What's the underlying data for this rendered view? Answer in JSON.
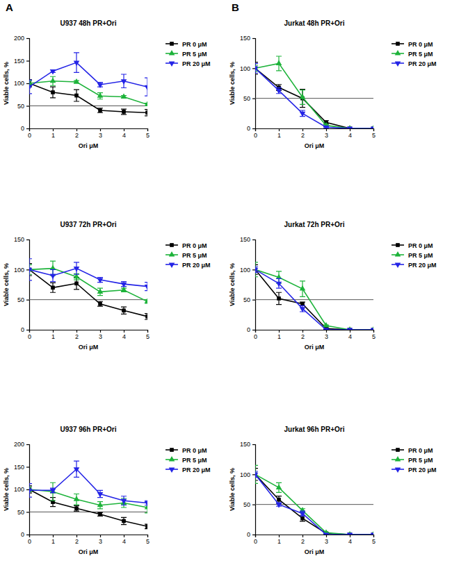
{
  "chart_data": [
    {
      "type": "line",
      "title": "U937 48h PR+Ori",
      "annotations": [
        "A"
      ],
      "x_label": "Ori μM",
      "y_label": "Viable cells, %",
      "x": [
        0,
        1,
        2,
        3,
        4,
        5
      ],
      "xlim": [
        0,
        5
      ],
      "xticks": [
        0,
        1,
        2,
        3,
        4,
        5
      ],
      "ylim": [
        0,
        200
      ],
      "yticks": [
        0,
        50,
        100,
        150,
        200
      ],
      "hline": 50,
      "legend": "right",
      "series": [
        {
          "name": "PR 0 μM",
          "color": "#000000",
          "marker": "square",
          "values": [
            100,
            80,
            73,
            40,
            37,
            35
          ],
          "errors": [
            8,
            12,
            13,
            5,
            6,
            7
          ]
        },
        {
          "name": "PR 5 μM",
          "color": "#1db33a",
          "marker": "triangle-up",
          "values": [
            100,
            105,
            103,
            72,
            70,
            53
          ],
          "errors": [
            5,
            10,
            3,
            7,
            3,
            3
          ]
        },
        {
          "name": "PR 20 μM",
          "color": "#2424e6",
          "marker": "triangle-down",
          "values": [
            92,
            127,
            146,
            97,
            105,
            92
          ],
          "errors": [
            15,
            3,
            22,
            5,
            15,
            20
          ]
        }
      ]
    },
    {
      "type": "line",
      "title": "Jurkat 48h PR+Ori",
      "annotations": [
        "B"
      ],
      "x_label": "Ori μM",
      "y_label": "Viable cells, %",
      "x": [
        0,
        1,
        2,
        3,
        4,
        5
      ],
      "xlim": [
        0,
        5
      ],
      "xticks": [
        0,
        1,
        2,
        3,
        4,
        5
      ],
      "ylim": [
        0,
        150
      ],
      "yticks": [
        0,
        50,
        100,
        150
      ],
      "hline": 50,
      "legend": "right",
      "series": [
        {
          "name": "PR 0 μM",
          "color": "#000000",
          "marker": "square",
          "values": [
            100,
            68,
            50,
            10,
            0,
            0
          ],
          "errors": [
            10,
            5,
            15,
            3,
            0,
            0
          ]
        },
        {
          "name": "PR 5 μM",
          "color": "#1db33a",
          "marker": "triangle-up",
          "values": [
            100,
            108,
            52,
            5,
            0,
            0
          ],
          "errors": [
            5,
            12,
            12,
            2,
            0,
            0
          ]
        },
        {
          "name": "PR 20 μM",
          "color": "#2424e6",
          "marker": "triangle-down",
          "values": [
            100,
            63,
            25,
            2,
            0,
            0
          ],
          "errors": [
            8,
            5,
            5,
            1,
            0,
            0
          ]
        }
      ]
    },
    {
      "type": "line",
      "title": "U937 72h PR+Ori",
      "x_label": "Ori μM",
      "y_label": "Viable cells, %",
      "x": [
        0,
        1,
        2,
        3,
        4,
        5
      ],
      "xlim": [
        0,
        5
      ],
      "xticks": [
        0,
        1,
        2,
        3,
        4,
        5
      ],
      "ylim": [
        0,
        150
      ],
      "yticks": [
        0,
        50,
        100,
        150
      ],
      "hline": 50,
      "legend": "right",
      "series": [
        {
          "name": "PR 0 μM",
          "color": "#000000",
          "marker": "square",
          "values": [
            100,
            70,
            77,
            43,
            32,
            22
          ],
          "errors": [
            10,
            8,
            10,
            4,
            6,
            5
          ]
        },
        {
          "name": "PR 5 μM",
          "color": "#1db33a",
          "marker": "triangle-up",
          "values": [
            100,
            102,
            88,
            63,
            66,
            47
          ],
          "errors": [
            8,
            12,
            5,
            6,
            3,
            3
          ]
        },
        {
          "name": "PR 20 μM",
          "color": "#2424e6",
          "marker": "triangle-down",
          "values": [
            100,
            90,
            102,
            83,
            76,
            72
          ],
          "errors": [
            18,
            10,
            10,
            4,
            4,
            7
          ]
        }
      ]
    },
    {
      "type": "line",
      "title": "Jurkat 72h PR+Ori",
      "x_label": "Ori μM",
      "y_label": "Viable cells, %",
      "x": [
        0,
        1,
        2,
        3,
        4,
        5
      ],
      "xlim": [
        0,
        5
      ],
      "xticks": [
        0,
        1,
        2,
        3,
        4,
        5
      ],
      "ylim": [
        0,
        150
      ],
      "yticks": [
        0,
        50,
        100,
        150
      ],
      "hline": 50,
      "legend": "right",
      "series": [
        {
          "name": "PR 0 μM",
          "color": "#000000",
          "marker": "square",
          "values": [
            100,
            52,
            43,
            2,
            0,
            0
          ],
          "errors": [
            8,
            10,
            3,
            1,
            0,
            0
          ]
        },
        {
          "name": "PR 5 μM",
          "color": "#1db33a",
          "marker": "triangle-up",
          "values": [
            100,
            87,
            68,
            7,
            0,
            0
          ],
          "errors": [
            12,
            10,
            13,
            1,
            0,
            0
          ]
        },
        {
          "name": "PR 20 μM",
          "color": "#2424e6",
          "marker": "triangle-down",
          "values": [
            100,
            77,
            35,
            0,
            0,
            0
          ],
          "errors": [
            5,
            8,
            5,
            0,
            0,
            0
          ]
        }
      ]
    },
    {
      "type": "line",
      "title": "U937 96h PR+Ori",
      "x_label": "Ori μM",
      "y_label": "Viable cells, %",
      "x": [
        0,
        1,
        2,
        3,
        4,
        5
      ],
      "xlim": [
        0,
        5
      ],
      "xticks": [
        0,
        1,
        2,
        3,
        4,
        5
      ],
      "ylim": [
        0,
        200
      ],
      "yticks": [
        0,
        50,
        100,
        150,
        200
      ],
      "hline": 50,
      "legend": "right",
      "series": [
        {
          "name": "PR 0 μM",
          "color": "#000000",
          "marker": "square",
          "values": [
            100,
            72,
            58,
            45,
            30,
            18
          ],
          "errors": [
            8,
            10,
            6,
            4,
            8,
            5
          ]
        },
        {
          "name": "PR 5 μM",
          "color": "#1db33a",
          "marker": "triangle-up",
          "values": [
            100,
            95,
            78,
            65,
            70,
            60
          ],
          "errors": [
            5,
            20,
            12,
            8,
            10,
            12
          ]
        },
        {
          "name": "PR 20 μM",
          "color": "#2424e6",
          "marker": "triangle-down",
          "values": [
            98,
            98,
            145,
            90,
            75,
            70
          ],
          "errors": [
            15,
            5,
            18,
            8,
            10,
            5
          ]
        }
      ]
    },
    {
      "type": "line",
      "title": "Jurkat 96h PR+Ori",
      "x_label": "Ori μM",
      "y_label": "Viable cells, %",
      "x": [
        0,
        1,
        2,
        3,
        4,
        5
      ],
      "xlim": [
        0,
        5
      ],
      "xticks": [
        0,
        1,
        2,
        3,
        4,
        5
      ],
      "ylim": [
        0,
        150
      ],
      "yticks": [
        0,
        50,
        100,
        150
      ],
      "hline": 50,
      "legend": "right",
      "series": [
        {
          "name": "PR 0 μM",
          "color": "#000000",
          "marker": "square",
          "values": [
            100,
            58,
            27,
            2,
            0,
            0
          ],
          "errors": [
            10,
            6,
            5,
            1,
            0,
            0
          ]
        },
        {
          "name": "PR 5 μM",
          "color": "#1db33a",
          "marker": "triangle-up",
          "values": [
            100,
            78,
            40,
            3,
            0,
            0
          ],
          "errors": [
            15,
            8,
            3,
            1,
            0,
            0
          ]
        },
        {
          "name": "PR 20 μM",
          "color": "#2424e6",
          "marker": "triangle-down",
          "values": [
            100,
            50,
            35,
            0,
            0,
            0
          ],
          "errors": [
            5,
            3,
            4,
            0,
            0,
            0
          ]
        }
      ]
    }
  ]
}
